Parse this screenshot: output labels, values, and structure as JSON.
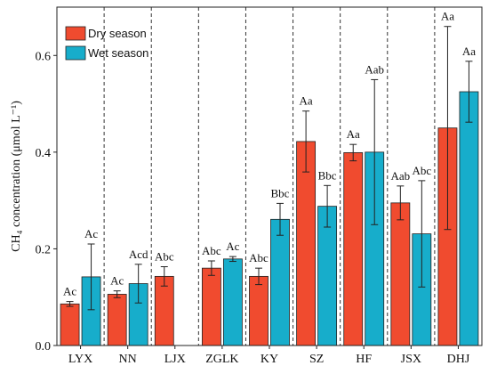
{
  "chart_data": {
    "type": "bar",
    "categories": [
      "LYX",
      "NN",
      "LJX",
      "ZGLK",
      "KY",
      "SZ",
      "HF",
      "JSX",
      "DHJ"
    ],
    "series": [
      {
        "name": "Dry season",
        "color": "#F04B2F",
        "values": [
          0.086,
          0.106,
          0.143,
          0.16,
          0.143,
          0.422,
          0.399,
          0.295,
          0.45
        ],
        "error": [
          0.005,
          0.007,
          0.02,
          0.015,
          0.017,
          0.063,
          0.017,
          0.035,
          0.21
        ],
        "letters": [
          "Ac",
          "Ac",
          "Abc",
          "Abc",
          "Abc",
          "Aa",
          "Aa",
          "Aab",
          "Aa"
        ]
      },
      {
        "name": "Wet season",
        "color": "#17ADCB",
        "values": [
          0.142,
          0.128,
          null,
          0.179,
          0.261,
          0.288,
          0.4,
          0.231,
          0.525
        ],
        "error": [
          0.068,
          0.04,
          null,
          0.005,
          0.033,
          0.043,
          0.15,
          0.11,
          0.063
        ],
        "letters": [
          "Ac",
          "Acd",
          "",
          "Ac",
          "Bbc",
          "Bbc",
          "Aab",
          "Abc",
          "Aa"
        ]
      }
    ],
    "ylabel": "CH₄ concentration (μmol L⁻¹)",
    "ylim": [
      0,
      0.7
    ],
    "yticks": [
      "0.0",
      "0.2",
      "0.4",
      "0.6"
    ],
    "legend_position": "top-left",
    "grid": false,
    "dividers": "dashed vertical lines between groups"
  }
}
